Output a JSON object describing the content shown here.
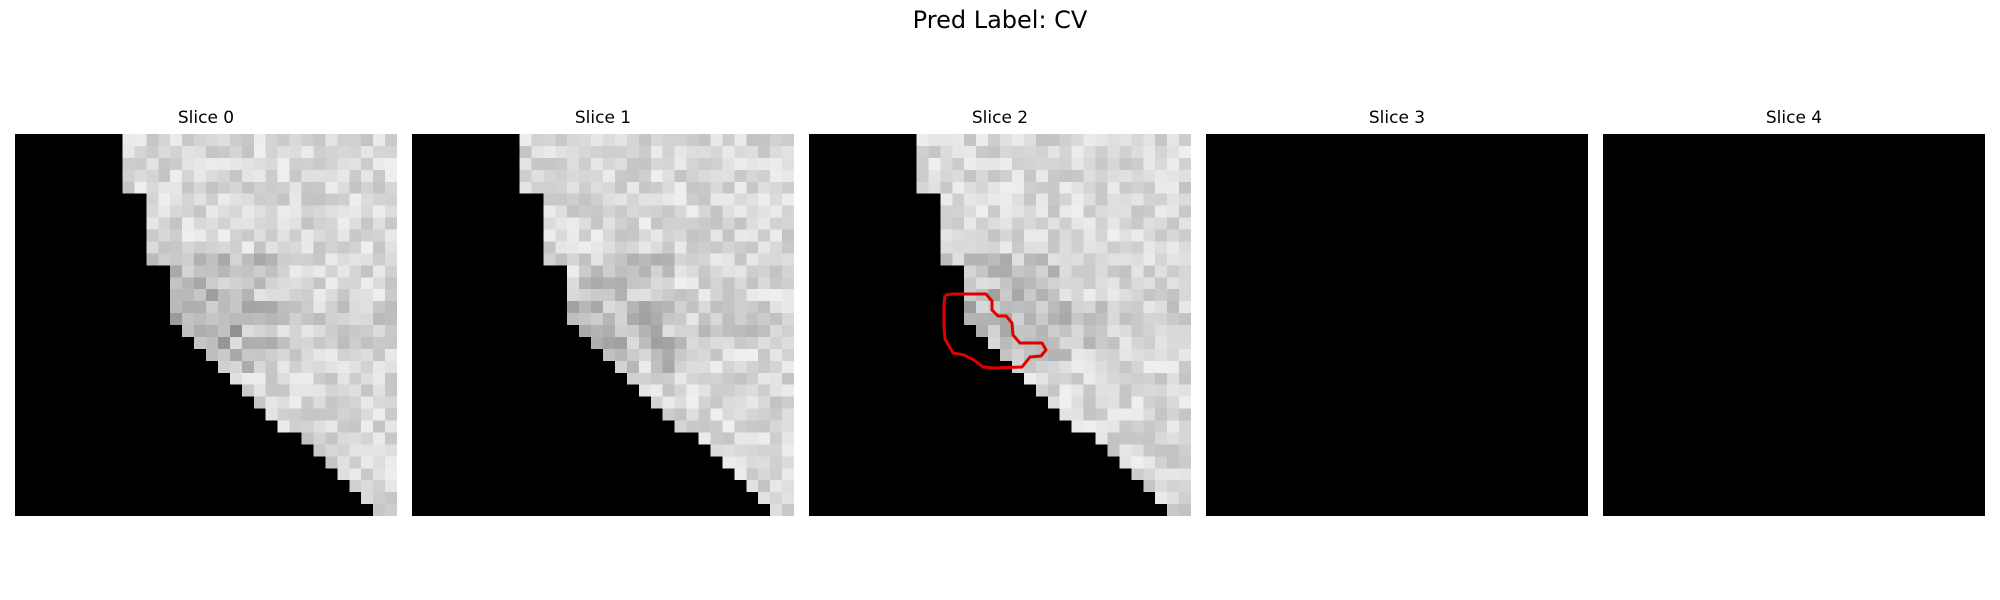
{
  "figure": {
    "title": "Pred Label: CV",
    "slices": [
      {
        "title": "Slice 0",
        "has_tissue": true,
        "has_contour": false
      },
      {
        "title": "Slice 1",
        "has_tissue": true,
        "has_contour": false
      },
      {
        "title": "Slice 2",
        "has_tissue": true,
        "has_contour": true
      },
      {
        "title": "Slice 3",
        "has_tissue": false,
        "has_contour": false
      },
      {
        "title": "Slice 4",
        "has_tissue": false,
        "has_contour": false
      }
    ],
    "contour_color": "#e00000",
    "background_color": "#000000",
    "colormap": "gray"
  }
}
